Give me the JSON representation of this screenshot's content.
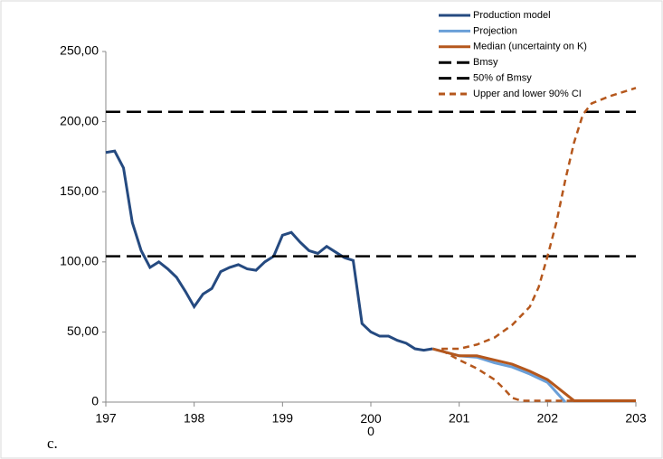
{
  "chart_data": {
    "type": "line",
    "panel_label": "c.",
    "xlim": [
      1970,
      2030
    ],
    "xticks": [
      {
        "value": 1970,
        "label": "197"
      },
      {
        "value": 1980,
        "label": "198"
      },
      {
        "value": 1990,
        "label": "199"
      },
      {
        "value": 2000,
        "label": "200\n0"
      },
      {
        "value": 2010,
        "label": "201"
      },
      {
        "value": 2020,
        "label": "202"
      },
      {
        "value": 2030,
        "label": "203"
      }
    ],
    "ylim": [
      0,
      250
    ],
    "yticks": [
      0,
      {
        "value": 50,
        "label": "50,00"
      },
      {
        "value": 100,
        "label": "100,00"
      },
      {
        "value": 150,
        "label": "150,00"
      },
      {
        "value": 200,
        "label": "200,00"
      },
      {
        "value": 250,
        "label": "250,00"
      }
    ],
    "legend": "top-right",
    "series": [
      {
        "name": "Production  model",
        "color": "#254a80",
        "dashed": false,
        "x": [
          1970,
          1971,
          1972,
          1973,
          1974,
          1975,
          1976,
          1977,
          1978,
          1979,
          1980,
          1981,
          1982,
          1983,
          1984,
          1985,
          1986,
          1987,
          1988,
          1989,
          1990,
          1991,
          1992,
          1993,
          1994,
          1995,
          1996,
          1997,
          1998,
          1999,
          2000,
          2001,
          2002,
          2003,
          2004,
          2005,
          2006,
          2007
        ],
        "values": [
          178,
          179,
          167,
          128,
          108,
          96,
          100,
          95,
          89,
          79,
          68,
          77,
          81,
          93,
          96,
          98,
          95,
          94,
          100,
          104,
          119,
          121,
          114,
          108,
          106,
          111,
          107,
          103,
          101,
          56,
          50,
          47,
          47,
          44,
          42,
          38,
          37,
          38
        ]
      },
      {
        "name": "Projection",
        "color": "#6a9fd8",
        "dashed": false,
        "x": [
          2007,
          2010,
          2012,
          2014,
          2016,
          2018,
          2020,
          2022
        ],
        "values": [
          38,
          33,
          32,
          28,
          25,
          20,
          14,
          0
        ]
      },
      {
        "name": "Median (uncertainty on K)",
        "color": "#b5571c",
        "dashed": false,
        "x": [
          2007,
          2010,
          2012,
          2014,
          2016,
          2018,
          2020,
          2023,
          2030
        ],
        "values": [
          38,
          33,
          33,
          30,
          27,
          22,
          16,
          1,
          1
        ]
      },
      {
        "name": "Bmsy",
        "color": "#000000",
        "dashed": true,
        "x": [
          1970,
          2030
        ],
        "values": [
          207,
          207
        ]
      },
      {
        "name": "50% of Bmsy",
        "color": "#000000",
        "dashed": true,
        "x": [
          1970,
          2030
        ],
        "values": [
          104,
          104
        ]
      },
      {
        "name": "Upper and lower  90% CI",
        "color": "#b5571c",
        "dashed": true,
        "x": [
          2008,
          2010,
          2012,
          2014,
          2016,
          2018,
          2019,
          2020,
          2021,
          2022,
          2023,
          2024,
          2025,
          2027,
          2030
        ],
        "values": [
          38,
          38,
          41,
          46,
          55,
          68,
          82,
          104,
          128,
          158,
          185,
          205,
          213,
          218,
          224
        ]
      },
      {
        "name": null,
        "color": "#b5571c",
        "dashed": true,
        "x": [
          2008,
          2010,
          2012,
          2014,
          2015,
          2016,
          2017,
          2020,
          2030
        ],
        "values": [
          37,
          30,
          24,
          16,
          10,
          3,
          1,
          1,
          1
        ]
      }
    ]
  }
}
